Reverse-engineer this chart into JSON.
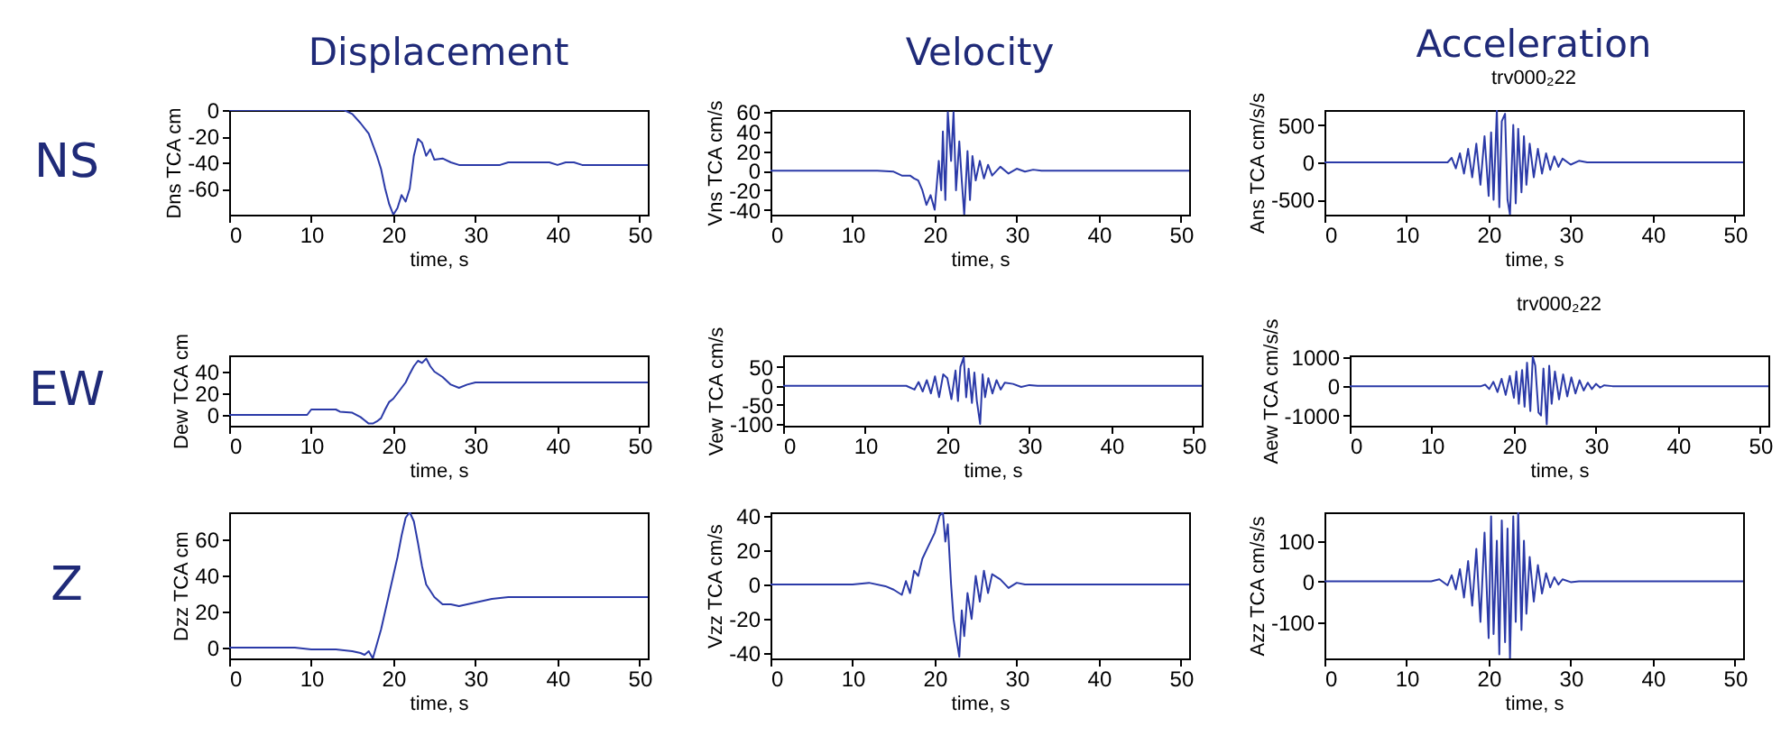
{
  "chart_data": [
    {
      "type": "line",
      "title": "Displacement",
      "annotations": [
        "NS"
      ],
      "xlabel": "time, s",
      "ylabel": "Dns TCA cm",
      "color": "#2b3aa8",
      "xlim": [
        0,
        51
      ],
      "xticks": [
        0,
        10,
        20,
        30,
        40,
        50
      ],
      "ylim": [
        -80,
        0
      ],
      "yticks": [
        -60,
        -40,
        -20,
        0
      ],
      "x": [
        0,
        14,
        15,
        16,
        17,
        18,
        18.5,
        19,
        19.5,
        20,
        20.5,
        21,
        21.5,
        22,
        22.5,
        23,
        23.5,
        24,
        24.5,
        25,
        26,
        27,
        28,
        30,
        33,
        34,
        39,
        40,
        41,
        42,
        43,
        51
      ],
      "values": [
        0,
        0,
        -3,
        -10,
        -18,
        -35,
        -45,
        -60,
        -72,
        -80,
        -75,
        -65,
        -70,
        -60,
        -35,
        -22,
        -25,
        -35,
        -30,
        -38,
        -37,
        -40,
        -42,
        -42,
        -42,
        -40,
        -40,
        -42,
        -40,
        -40,
        -42,
        -42
      ]
    },
    {
      "type": "line",
      "title": "Velocity",
      "xlabel": "time, s",
      "ylabel": "Vns TCA cm/s",
      "color": "#2b3aa8",
      "xlim": [
        0,
        51
      ],
      "xticks": [
        0,
        10,
        20,
        30,
        40,
        50
      ],
      "ylim": [
        -45,
        62
      ],
      "yticks": [
        -40,
        -20,
        0,
        20,
        40,
        60
      ],
      "x": [
        0,
        13,
        15,
        16,
        17,
        17.5,
        18,
        18.5,
        19,
        19.5,
        20,
        20.5,
        20.8,
        21,
        21.3,
        21.6,
        22,
        22.3,
        22.6,
        23,
        23.3,
        23.6,
        24,
        24.3,
        24.6,
        25,
        25.5,
        26,
        26.5,
        27,
        28,
        29,
        30,
        31,
        32,
        33,
        51
      ],
      "values": [
        0,
        0,
        -1,
        -5,
        -5,
        -8,
        -10,
        -20,
        -35,
        -25,
        -40,
        10,
        -20,
        40,
        -30,
        60,
        10,
        60,
        -20,
        30,
        -10,
        -45,
        20,
        -30,
        15,
        -10,
        10,
        -8,
        6,
        -5,
        4,
        -3,
        2,
        -1,
        1,
        0,
        0
      ]
    },
    {
      "type": "line",
      "title": "Acceleration",
      "subtitle": "trv000₂22",
      "xlabel": "time, s",
      "ylabel": "Ans TCA cm/s/s",
      "color": "#2b3aa8",
      "xlim": [
        0,
        51
      ],
      "xticks": [
        0,
        10,
        20,
        30,
        40,
        50
      ],
      "ylim": [
        -700,
        700
      ],
      "yticks": [
        -500,
        0,
        500
      ],
      "x": [
        0,
        15,
        15.5,
        16,
        16.5,
        17,
        17.5,
        18,
        18.5,
        19,
        19.5,
        20,
        20.3,
        20.6,
        21,
        21.3,
        21.6,
        22,
        22.3,
        22.6,
        23,
        23.3,
        23.6,
        24,
        24.3,
        24.6,
        25,
        25.5,
        26,
        26.5,
        27,
        27.5,
        28,
        28.5,
        29,
        30,
        31,
        32,
        51
      ],
      "values": [
        0,
        0,
        60,
        -80,
        120,
        -150,
        180,
        -200,
        250,
        -300,
        350,
        -450,
        400,
        -500,
        700,
        -600,
        550,
        650,
        -500,
        -700,
        500,
        -550,
        450,
        -400,
        350,
        -300,
        250,
        -200,
        180,
        -150,
        120,
        -100,
        80,
        -60,
        50,
        -30,
        20,
        0,
        0
      ]
    },
    {
      "type": "line",
      "annotations": [
        "EW"
      ],
      "xlabel": "time, s",
      "ylabel": "Dew TCA cm",
      "color": "#2b3aa8",
      "xlim": [
        0,
        51
      ],
      "xticks": [
        0,
        10,
        20,
        30,
        40,
        50
      ],
      "ylim": [
        -10,
        55
      ],
      "yticks": [
        0,
        20,
        40
      ],
      "x": [
        0,
        9.5,
        10,
        13,
        13.5,
        15,
        16,
        16.5,
        17,
        17.5,
        18,
        18.5,
        19,
        19.5,
        20,
        20.5,
        21,
        21.5,
        22,
        22.5,
        23,
        23.5,
        24,
        24.5,
        25,
        26,
        27,
        28,
        29,
        30,
        51
      ],
      "values": [
        0,
        0,
        5,
        5,
        3,
        2,
        -2,
        -5,
        -8,
        -8,
        -6,
        -3,
        5,
        12,
        15,
        20,
        25,
        30,
        38,
        45,
        50,
        48,
        52,
        45,
        40,
        35,
        28,
        25,
        28,
        30,
        30
      ]
    },
    {
      "type": "line",
      "xlabel": "time, s",
      "ylabel": "Vew TCA cm/s",
      "color": "#2b3aa8",
      "xlim": [
        0,
        51
      ],
      "xticks": [
        0,
        10,
        20,
        30,
        40,
        50
      ],
      "ylim": [
        -105,
        80
      ],
      "yticks": [
        -100,
        -50,
        0,
        50
      ],
      "x": [
        0,
        15,
        16,
        16.5,
        17,
        17.5,
        18,
        18.5,
        19,
        19.5,
        20,
        20.5,
        21,
        21.3,
        21.6,
        22,
        22.3,
        22.6,
        23,
        23.3,
        23.6,
        24,
        24.3,
        24.6,
        25,
        25.5,
        26,
        26.5,
        27,
        28,
        29,
        30,
        31,
        51
      ],
      "values": [
        0,
        0,
        -10,
        10,
        -15,
        15,
        -20,
        25,
        -30,
        30,
        20,
        -35,
        40,
        -40,
        50,
        75,
        -30,
        45,
        -45,
        35,
        -40,
        -100,
        30,
        -30,
        20,
        -20,
        15,
        -10,
        8,
        5,
        -3,
        2,
        0,
        0
      ]
    },
    {
      "type": "line",
      "title": "trv000₂22",
      "xlabel": "time, s",
      "ylabel": "Aew TCA cm/s/s",
      "color": "#2b3aa8",
      "xlim": [
        0,
        51
      ],
      "xticks": [
        0,
        10,
        20,
        30,
        40,
        50
      ],
      "ylim": [
        -1350,
        1050
      ],
      "yticks": [
        -1000,
        0,
        1000
      ],
      "x": [
        0,
        16,
        16.5,
        17,
        17.5,
        18,
        18.5,
        19,
        19.5,
        20,
        20.3,
        20.6,
        21,
        21.3,
        21.6,
        22,
        22.3,
        22.6,
        23,
        23.3,
        23.6,
        24,
        24.3,
        24.6,
        25,
        25.5,
        26,
        26.5,
        27,
        27.5,
        28,
        28.5,
        29,
        29.5,
        30,
        30.5,
        31,
        32,
        51
      ],
      "values": [
        0,
        0,
        50,
        -100,
        150,
        -200,
        250,
        -300,
        350,
        -400,
        500,
        -600,
        550,
        -700,
        800,
        -850,
        1000,
        700,
        -900,
        -1000,
        600,
        -1300,
        700,
        -600,
        500,
        -450,
        400,
        -350,
        300,
        -250,
        200,
        -150,
        120,
        -100,
        80,
        -50,
        30,
        0,
        0
      ]
    },
    {
      "type": "line",
      "annotations": [
        "Z"
      ],
      "xlabel": "time, s",
      "ylabel": "Dzz TCA cm",
      "color": "#2b3aa8",
      "xlim": [
        0,
        51
      ],
      "xticks": [
        0,
        10,
        20,
        30,
        40,
        50
      ],
      "ylim": [
        -6,
        75
      ],
      "yticks": [
        0,
        20,
        40,
        60
      ],
      "x": [
        0,
        8,
        10,
        12,
        13,
        15,
        16,
        16.5,
        17,
        17.5,
        18,
        18.5,
        19,
        19.5,
        20,
        20.5,
        21,
        21.5,
        22,
        22.5,
        23,
        23.5,
        24,
        25,
        26,
        27,
        28,
        30,
        32,
        34,
        51
      ],
      "values": [
        0,
        0,
        -1,
        -1,
        -1,
        -2,
        -3,
        -4,
        -2,
        -6,
        2,
        10,
        20,
        30,
        40,
        50,
        62,
        72,
        75,
        70,
        58,
        45,
        35,
        28,
        24,
        24,
        23,
        25,
        27,
        28,
        28
      ]
    },
    {
      "type": "line",
      "xlabel": "time, s",
      "ylabel": "Vzz TCA cm/s",
      "color": "#2b3aa8",
      "xlim": [
        0,
        51
      ],
      "xticks": [
        0,
        10,
        20,
        30,
        40,
        50
      ],
      "ylim": [
        -43,
        42
      ],
      "yticks": [
        -40,
        -20,
        0,
        20,
        40
      ],
      "x": [
        0,
        10,
        12,
        14,
        15,
        16,
        16.5,
        17,
        17.5,
        18,
        18.5,
        19,
        19.5,
        20,
        20.3,
        20.6,
        21,
        21.3,
        21.6,
        22,
        22.3,
        22.6,
        23,
        23.3,
        23.6,
        24,
        24.5,
        25,
        25.5,
        26,
        26.5,
        27,
        28,
        29,
        30,
        31,
        51
      ],
      "values": [
        0,
        0,
        1,
        -1,
        -3,
        -6,
        2,
        -5,
        8,
        5,
        15,
        20,
        25,
        30,
        35,
        40,
        42,
        25,
        35,
        0,
        -20,
        -30,
        -42,
        -15,
        -30,
        -5,
        -20,
        5,
        -10,
        8,
        -5,
        6,
        3,
        -2,
        1,
        0,
        0
      ]
    },
    {
      "type": "line",
      "xlabel": "time, s",
      "ylabel": "Azz TCA cm/s/s",
      "color": "#2b3aa8",
      "xlim": [
        0,
        51
      ],
      "xticks": [
        0,
        10,
        20,
        30,
        40,
        50
      ],
      "ylim": [
        -190,
        170
      ],
      "yticks": [
        -100,
        0,
        100
      ],
      "x": [
        0,
        13,
        14,
        15,
        15.5,
        16,
        16.5,
        17,
        17.5,
        18,
        18.5,
        19,
        19.5,
        20,
        20.3,
        20.6,
        21,
        21.3,
        21.6,
        22,
        22.3,
        22.6,
        23,
        23.3,
        23.6,
        24,
        24.3,
        24.6,
        25,
        25.5,
        26,
        26.5,
        27,
        27.5,
        28,
        28.5,
        29,
        30,
        31,
        51
      ],
      "values": [
        0,
        0,
        5,
        -10,
        15,
        -20,
        30,
        -40,
        50,
        -60,
        80,
        -100,
        120,
        -140,
        160,
        -130,
        100,
        -180,
        150,
        -150,
        130,
        -190,
        160,
        -100,
        170,
        -120,
        100,
        -80,
        60,
        -50,
        40,
        -30,
        20,
        -15,
        10,
        -8,
        5,
        -2,
        0,
        0
      ]
    }
  ]
}
